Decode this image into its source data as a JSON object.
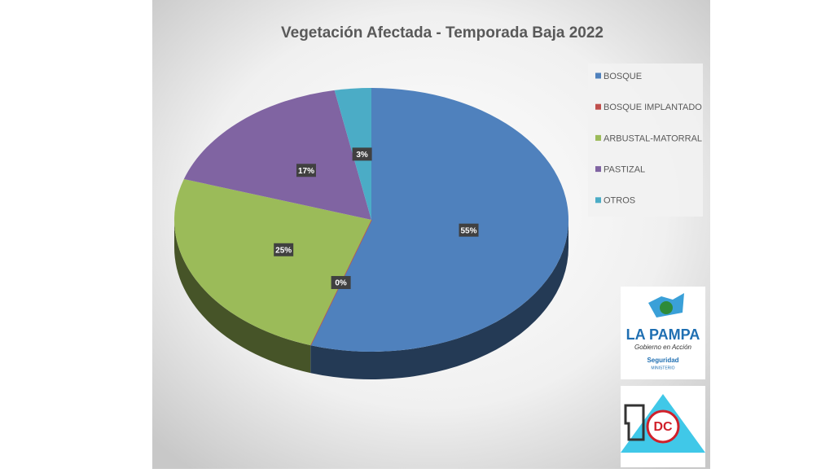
{
  "chart_data": {
    "type": "pie",
    "title": "Vegetación Afectada  - Temporada Baja 2022",
    "categories": [
      "BOSQUE",
      "BOSQUE IMPLANTADO",
      "ARBUSTAL-MATORRAL",
      "PASTIZAL",
      "OTROS"
    ],
    "values": [
      55,
      0,
      25,
      17,
      3
    ],
    "value_labels": [
      "55%",
      "0%",
      "25%",
      "17%",
      "3%"
    ],
    "colors": [
      "#4f81bd",
      "#c0504d",
      "#9bbb59",
      "#8064a2",
      "#4bacc6"
    ],
    "legend": "right"
  },
  "logos": {
    "province": "LA PAMPA",
    "slogan": "Gobierno en Acción",
    "office": "Seguridad",
    "ministry": "MINISTERIO",
    "civil_defense": "DC"
  }
}
